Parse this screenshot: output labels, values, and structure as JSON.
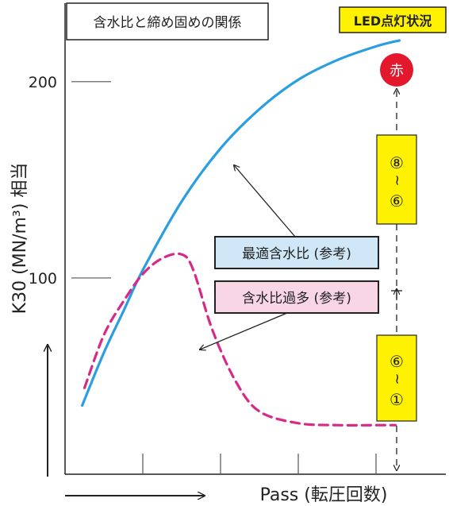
{
  "chart_data": {
    "type": "line",
    "title": "含水比と締め固めの関係",
    "xlabel": "Pass (転圧回数)",
    "ylabel": "K30 (MN/m³) 相当",
    "x_ticks": [
      "",
      "",
      "",
      ""
    ],
    "y_ticks": [
      100,
      200
    ],
    "xlim": [
      0,
      5
    ],
    "ylim": [
      0,
      240
    ],
    "series": [
      {
        "name": "最適含水比 (参考)",
        "color": "#2a9ee0",
        "style": "solid",
        "x": [
          0.22,
          0.5,
          0.75,
          1.0,
          1.5,
          2.0,
          2.5,
          3.0,
          3.5,
          4.0,
          4.3
        ],
        "y": [
          35,
          62,
          83,
          104,
          139,
          166,
          186,
          201,
          211,
          218,
          221
        ]
      },
      {
        "name": "含水比過多 (参考)",
        "color": "#d62a86",
        "style": "dashed",
        "x": [
          0.25,
          0.5,
          0.75,
          1.0,
          1.25,
          1.5,
          1.65,
          1.9,
          2.2,
          2.5,
          3.0,
          3.5,
          4.0,
          4.25
        ],
        "y": [
          44,
          71,
          88,
          102,
          110,
          112,
          104,
          73,
          47,
          32,
          26,
          25,
          25,
          25
        ]
      }
    ]
  },
  "led_panel": {
    "title": "LED点灯状況",
    "red_label": "赤",
    "upper_range": [
      "⑧",
      "~",
      "⑥"
    ],
    "lower_range": [
      "⑥",
      "~",
      "①"
    ],
    "colors": {
      "label_bg": "#fff200",
      "red": "#e3182d"
    }
  }
}
